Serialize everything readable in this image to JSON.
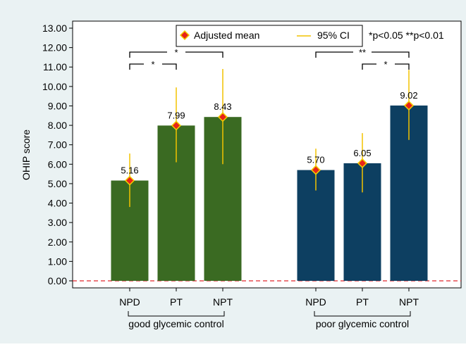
{
  "chart_data": {
    "type": "bar",
    "ylabel": "OHIP score",
    "ylim": [
      0,
      13
    ],
    "yticks": [
      "0.00",
      "1.00",
      "2.00",
      "3.00",
      "4.00",
      "5.00",
      "6.00",
      "7.00",
      "8.00",
      "9.00",
      "10.00",
      "11.00",
      "12.00",
      "13.00"
    ],
    "reference_line": 0,
    "groups": [
      {
        "label": "good glycemic control",
        "color": "#3a6a22",
        "bars": [
          {
            "category": "NPD",
            "value": 5.16,
            "label": "5.16",
            "ci": [
              3.8,
              6.55
            ]
          },
          {
            "category": "PT",
            "value": 7.99,
            "label": "7.99",
            "ci": [
              6.1,
              9.95
            ]
          },
          {
            "category": "NPT",
            "value": 8.43,
            "label": "8.43",
            "ci": [
              6.0,
              10.9
            ]
          }
        ],
        "brackets": [
          {
            "from": 0,
            "to": 1,
            "label": "*",
            "level": "lower"
          },
          {
            "from": 0,
            "to": 2,
            "label": "*",
            "level": "upper"
          }
        ]
      },
      {
        "label": "poor glycemic control",
        "color": "#0d3f61",
        "bars": [
          {
            "category": "NPD",
            "value": 5.7,
            "label": "5.70",
            "ci": [
              4.65,
              6.8
            ]
          },
          {
            "category": "PT",
            "value": 6.05,
            "label": "6.05",
            "ci": [
              4.55,
              7.6
            ]
          },
          {
            "category": "NPT",
            "value": 9.02,
            "label": "9.02",
            "ci": [
              7.25,
              10.85
            ]
          }
        ],
        "brackets": [
          {
            "from": 1,
            "to": 2,
            "label": "*",
            "level": "lower"
          },
          {
            "from": 0,
            "to": 2,
            "label": "**",
            "level": "upper"
          }
        ]
      }
    ],
    "legend": {
      "placement": "top",
      "items": [
        {
          "label": "Adjusted mean",
          "marker": "diamond",
          "color": "#e8241a",
          "edge": "#f2d000"
        },
        {
          "label": "95% CI",
          "marker": "line",
          "color": "#f2c200"
        }
      ]
    },
    "note": "*p<0.05 **p<0.01",
    "colors": {
      "background": "#eaf2f3",
      "ci": "#f2c200",
      "reference": "#e0282e"
    }
  }
}
